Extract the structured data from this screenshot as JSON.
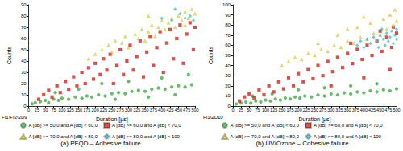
{
  "chart_data": [
    {
      "type": "scatter",
      "title": "(a) PFQD – Adhesive failure",
      "annotations": [
        "FI1\\FI2\\2D9"
      ],
      "x_label": "Duration [µs]",
      "y_label": "Counts",
      "xlim": [
        0,
        500
      ],
      "xticks": [
        0,
        25,
        50,
        75,
        100,
        125,
        150,
        175,
        200,
        225,
        250,
        275,
        300,
        325,
        350,
        375,
        400,
        425,
        450,
        475,
        500
      ],
      "ylim": [
        0,
        90
      ],
      "yticks": [
        0,
        10,
        20,
        30,
        40,
        50,
        60,
        70,
        80,
        90
      ],
      "grid": false,
      "legend": "bottom",
      "series": [
        {
          "name": "A [dB] >= 50,0 and A [dB] < 60,0",
          "color": "#3cb043",
          "marker": "circle",
          "values": [
            [
              10,
              2
            ],
            [
              20,
              3
            ],
            [
              35,
              4
            ],
            [
              50,
              5
            ],
            [
              60,
              3
            ],
            [
              75,
              6
            ],
            [
              90,
              5
            ],
            [
              100,
              7
            ],
            [
              120,
              6
            ],
            [
              140,
              8
            ],
            [
              160,
              7
            ],
            [
              175,
              9
            ],
            [
              190,
              8
            ],
            [
              210,
              10
            ],
            [
              230,
              9
            ],
            [
              250,
              11
            ],
            [
              270,
              12
            ],
            [
              290,
              11
            ],
            [
              310,
              13
            ],
            [
              330,
              14
            ],
            [
              350,
              13
            ],
            [
              370,
              15
            ],
            [
              390,
              16
            ],
            [
              410,
              15
            ],
            [
              430,
              17
            ],
            [
              450,
              18
            ],
            [
              470,
              17
            ],
            [
              490,
              19
            ],
            [
              150,
              15
            ],
            [
              220,
              20
            ],
            [
              300,
              22
            ],
            [
              400,
              25
            ],
            [
              480,
              28
            ],
            [
              80,
              12
            ],
            [
              260,
              6
            ],
            [
              360,
              8
            ],
            [
              440,
              10
            ]
          ]
        },
        {
          "name": "A [dB] >= 60,0 and A [dB] < 70,0",
          "color": "#e0201c",
          "marker": "square",
          "values": [
            [
              30,
              6
            ],
            [
              45,
              10
            ],
            [
              60,
              14
            ],
            [
              70,
              8
            ],
            [
              85,
              18
            ],
            [
              95,
              12
            ],
            [
              110,
              22
            ],
            [
              120,
              15
            ],
            [
              135,
              26
            ],
            [
              145,
              18
            ],
            [
              160,
              30
            ],
            [
              170,
              20
            ],
            [
              180,
              34
            ],
            [
              195,
              24
            ],
            [
              200,
              38
            ],
            [
              215,
              28
            ],
            [
              225,
              42
            ],
            [
              235,
              32
            ],
            [
              245,
              46
            ],
            [
              255,
              20
            ],
            [
              265,
              36
            ],
            [
              275,
              50
            ],
            [
              285,
              28
            ],
            [
              295,
              40
            ],
            [
              305,
              54
            ],
            [
              315,
              32
            ],
            [
              325,
              44
            ],
            [
              335,
              58
            ],
            [
              345,
              26
            ],
            [
              355,
              48
            ],
            [
              365,
              62
            ],
            [
              375,
              36
            ],
            [
              385,
              52
            ],
            [
              395,
              66
            ],
            [
              405,
              30
            ],
            [
              415,
              56
            ],
            [
              425,
              68
            ],
            [
              435,
              42
            ],
            [
              445,
              60
            ],
            [
              455,
              72
            ],
            [
              465,
              38
            ],
            [
              475,
              64
            ],
            [
              485,
              74
            ],
            [
              495,
              50
            ],
            [
              500,
              70
            ]
          ]
        },
        {
          "name": "A [dB] >= 70,0 and A [dB] < 80,0",
          "color": "#e6e020",
          "marker": "triangle",
          "values": [
            [
              180,
              42
            ],
            [
              200,
              46
            ],
            [
              220,
              50
            ],
            [
              240,
              54
            ],
            [
              250,
              48
            ],
            [
              260,
              58
            ],
            [
              280,
              56
            ],
            [
              290,
              62
            ],
            [
              300,
              52
            ],
            [
              320,
              64
            ],
            [
              330,
              60
            ],
            [
              340,
              68
            ],
            [
              350,
              58
            ],
            [
              360,
              66
            ],
            [
              370,
              72
            ],
            [
              380,
              62
            ],
            [
              390,
              70
            ],
            [
              400,
              76
            ],
            [
              410,
              68
            ],
            [
              420,
              74
            ],
            [
              430,
              78
            ],
            [
              440,
              70
            ],
            [
              450,
              80
            ],
            [
              460,
              76
            ],
            [
              470,
              84
            ],
            [
              480,
              78
            ],
            [
              490,
              86
            ],
            [
              500,
              82
            ],
            [
              360,
              80
            ],
            [
              470,
              72
            ]
          ]
        },
        {
          "name": "A [dB] >= 80,0 and A [dB] < 100",
          "color": "#38c8d8",
          "marker": "diamond",
          "values": [
            [
              400,
              78
            ],
            [
              430,
              76
            ],
            [
              455,
              82
            ],
            [
              470,
              78
            ],
            [
              485,
              80
            ],
            [
              495,
              76
            ],
            [
              440,
              86
            ]
          ]
        }
      ]
    },
    {
      "type": "scatter",
      "title": "(b) UV/Ozone – Cohesive failure",
      "annotations": [
        "FI1\\2D10"
      ],
      "x_label": "Duration [µs]",
      "y_label": "Counts",
      "xlim": [
        0,
        500
      ],
      "xticks": [
        0,
        25,
        50,
        75,
        100,
        125,
        150,
        175,
        200,
        225,
        250,
        275,
        300,
        325,
        350,
        375,
        400,
        425,
        450,
        475,
        500
      ],
      "ylim": [
        0,
        100
      ],
      "yticks": [
        0,
        10,
        20,
        30,
        40,
        50,
        60,
        70,
        80,
        90,
        100
      ],
      "grid": false,
      "legend": "bottom",
      "series": [
        {
          "name": "A [dB] >= 50,0 and A [dB] < 60,0",
          "color": "#3cb043",
          "marker": "circle",
          "values": [
            [
              10,
              2
            ],
            [
              25,
              3
            ],
            [
              40,
              4
            ],
            [
              55,
              3
            ],
            [
              70,
              5
            ],
            [
              85,
              4
            ],
            [
              100,
              6
            ],
            [
              115,
              5
            ],
            [
              130,
              7
            ],
            [
              145,
              6
            ],
            [
              160,
              8
            ],
            [
              175,
              7
            ],
            [
              190,
              9
            ],
            [
              205,
              8
            ],
            [
              220,
              10
            ],
            [
              240,
              9
            ],
            [
              260,
              11
            ],
            [
              280,
              10
            ],
            [
              300,
              12
            ],
            [
              320,
              11
            ],
            [
              340,
              13
            ],
            [
              360,
              12
            ],
            [
              380,
              14
            ],
            [
              400,
              13
            ],
            [
              420,
              15
            ],
            [
              440,
              14
            ],
            [
              460,
              16
            ],
            [
              480,
              15
            ],
            [
              500,
              17
            ],
            [
              120,
              12
            ],
            [
              200,
              16
            ],
            [
              280,
              18
            ],
            [
              360,
              20
            ],
            [
              440,
              22
            ],
            [
              60,
              10
            ]
          ]
        },
        {
          "name": "A [dB] >= 60,0 and A [dB] < 70,0",
          "color": "#e0201c",
          "marker": "square",
          "values": [
            [
              20,
              5
            ],
            [
              35,
              9
            ],
            [
              50,
              12
            ],
            [
              65,
              8
            ],
            [
              80,
              16
            ],
            [
              95,
              11
            ],
            [
              110,
              20
            ],
            [
              125,
              14
            ],
            [
              140,
              24
            ],
            [
              155,
              17
            ],
            [
              170,
              28
            ],
            [
              185,
              20
            ],
            [
              200,
              32
            ],
            [
              215,
              24
            ],
            [
              230,
              36
            ],
            [
              245,
              27
            ],
            [
              260,
              40
            ],
            [
              275,
              30
            ],
            [
              290,
              44
            ],
            [
              305,
              34
            ],
            [
              320,
              48
            ],
            [
              335,
              38
            ],
            [
              350,
              52
            ],
            [
              365,
              42
            ],
            [
              380,
              56
            ],
            [
              395,
              46
            ],
            [
              410,
              60
            ],
            [
              425,
              50
            ],
            [
              440,
              64
            ],
            [
              455,
              54
            ],
            [
              470,
              68
            ],
            [
              485,
              58
            ],
            [
              500,
              72
            ],
            [
              300,
              20
            ],
            [
              400,
              28
            ],
            [
              480,
              36
            ],
            [
              360,
              62
            ],
            [
              450,
              74
            ],
            [
              490,
              78
            ]
          ]
        },
        {
          "name": "A [dB] >= 70,0 and A [dB] < 80,0",
          "color": "#e6e020",
          "marker": "triangle",
          "values": [
            [
              150,
              40
            ],
            [
              170,
              44
            ],
            [
              190,
              48
            ],
            [
              210,
              46
            ],
            [
              230,
              52
            ],
            [
              250,
              50
            ],
            [
              270,
              56
            ],
            [
              290,
              54
            ],
            [
              310,
              60
            ],
            [
              330,
              58
            ],
            [
              350,
              64
            ],
            [
              370,
              62
            ],
            [
              390,
              68
            ],
            [
              410,
              66
            ],
            [
              430,
              72
            ],
            [
              450,
              70
            ],
            [
              470,
              76
            ],
            [
              490,
              80
            ],
            [
              500,
              84
            ],
            [
              320,
              70
            ],
            [
              380,
              78
            ],
            [
              420,
              82
            ],
            [
              460,
              86
            ],
            [
              480,
              90
            ],
            [
              495,
              95
            ],
            [
              260,
              62
            ],
            [
              400,
              88
            ],
            [
              350,
              76
            ]
          ]
        },
        {
          "name": "A [dB] >= 80,0 and A [dB] < 100",
          "color": "#38c8d8",
          "marker": "diamond",
          "values": [
            [
              380,
              60
            ],
            [
              390,
              64
            ],
            [
              400,
              58
            ],
            [
              410,
              66
            ],
            [
              420,
              62
            ],
            [
              430,
              68
            ],
            [
              440,
              64
            ],
            [
              445,
              58
            ],
            [
              450,
              70
            ],
            [
              460,
              66
            ],
            [
              465,
              60
            ],
            [
              470,
              72
            ],
            [
              475,
              64
            ],
            [
              480,
              68
            ],
            [
              485,
              74
            ],
            [
              490,
              62
            ],
            [
              495,
              70
            ],
            [
              500,
              66
            ],
            [
              455,
              76
            ],
            [
              500,
              76
            ]
          ]
        }
      ]
    }
  ]
}
